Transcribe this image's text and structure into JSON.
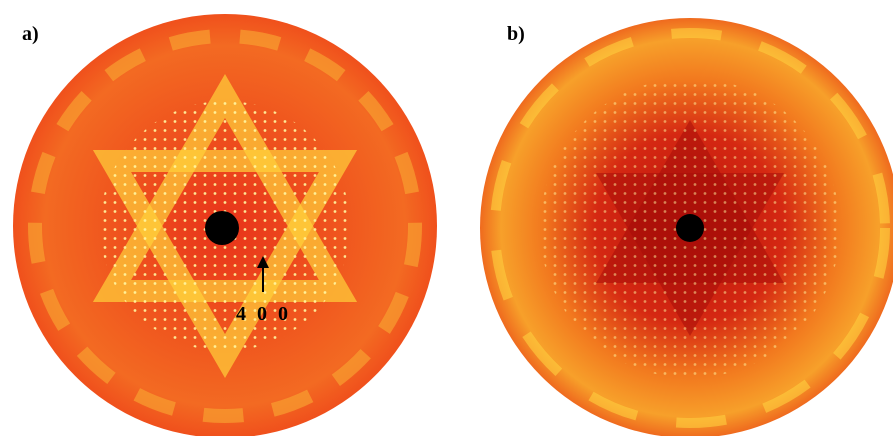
{
  "panels": [
    {
      "label": "a)",
      "annotation": "4 0 0"
    },
    {
      "label": "b)"
    }
  ]
}
